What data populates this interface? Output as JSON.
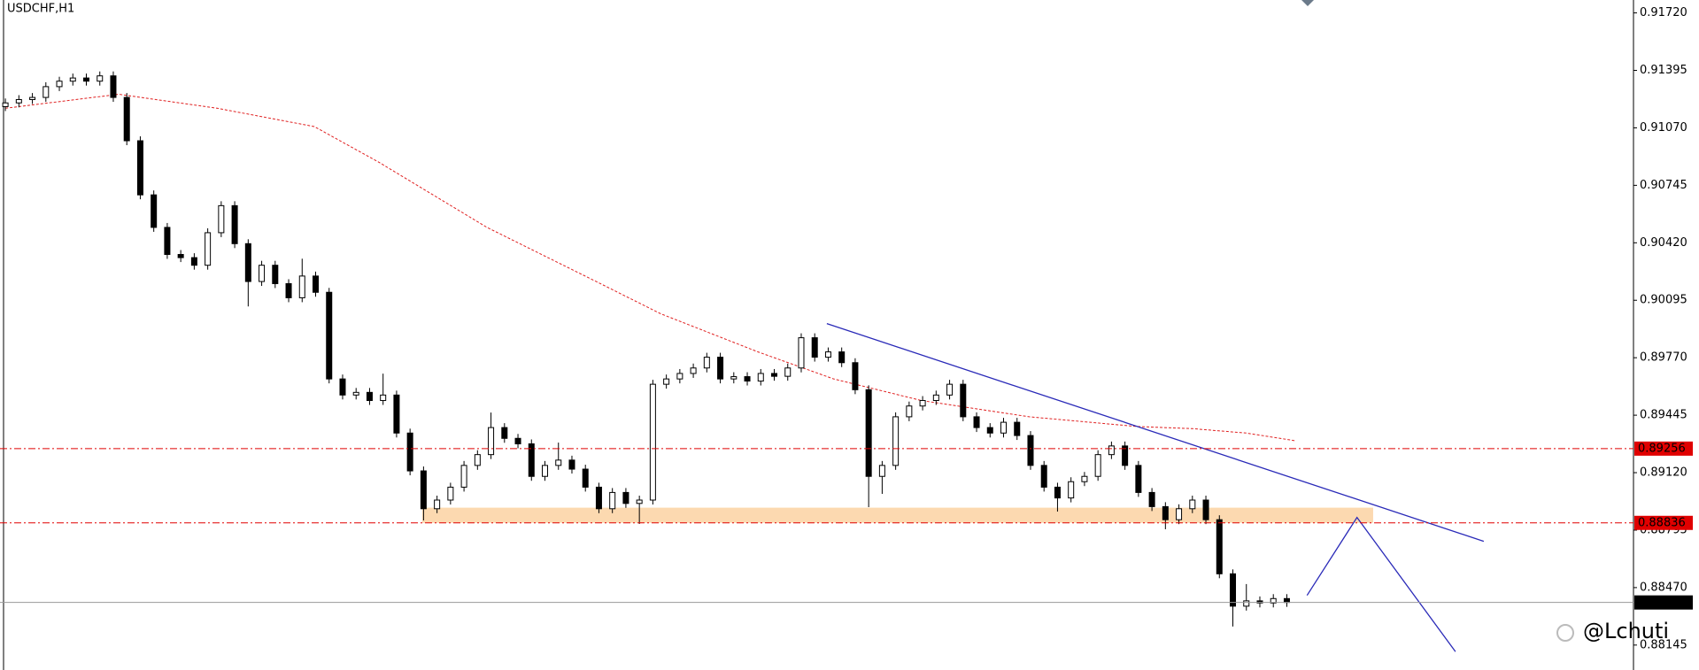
{
  "chart_data": {
    "type": "candlestick",
    "title": "USDCHF,H1",
    "xlim": [
      -0.4,
      120.7
    ],
    "ylim": [
      0.88004,
      0.91793
    ],
    "yticks": [
      {
        "value": 0.9172,
        "label": "0.91720"
      },
      0.91395,
      {
        "value": 0.9107,
        "label": "0.91070"
      },
      0.90745,
      {
        "value": 0.9042,
        "label": "0.90420"
      },
      0.90095,
      {
        "value": 0.8977,
        "label": "0.89770"
      },
      0.89445,
      {
        "value": 0.8912,
        "label": "0.89120"
      },
      0.88795,
      {
        "value": 0.8847,
        "label": "0.88470"
      },
      0.88145
    ],
    "up_color": "#ffffff",
    "down_color": "#000000",
    "open": [
      0.9119,
      0.91211,
      0.9123,
      0.91242,
      0.91303,
      0.91334,
      0.91352,
      0.91334,
      0.91364,
      0.91242,
      0.90997,
      0.90691,
      0.90507,
      0.90354,
      0.90336,
      0.90293,
      0.90477,
      0.9063,
      0.90415,
      0.90201,
      0.90293,
      0.90189,
      0.90109,
      0.90232,
      0.9014,
      0.8965,
      0.89559,
      0.89574,
      0.89528,
      0.89559,
      0.89344,
      0.8913,
      0.88916,
      0.88965,
      0.89038,
      0.89161,
      0.89222,
      0.89375,
      0.89314,
      0.89283,
      0.89099,
      0.89161,
      0.89191,
      0.8914,
      0.89038,
      0.88916,
      0.89008,
      0.88946,
      0.88965,
      0.8962,
      0.8965,
      0.89681,
      0.89712,
      0.89773,
      0.8965,
      0.89663,
      0.89638,
      0.89681,
      0.89665,
      0.89712,
      0.89883,
      0.89773,
      0.89803,
      0.89742,
      0.89589,
      0.89099,
      0.89161,
      0.89436,
      0.89497,
      0.89528,
      0.89559,
      0.8962,
      0.89436,
      0.89375,
      0.89344,
      0.89405,
      0.8933,
      0.89161,
      0.89038,
      0.88977,
      0.89069,
      0.89099,
      0.89222,
      0.89271,
      0.89161,
      0.89008,
      0.88928,
      0.88854,
      0.88916,
      0.88965,
      0.88854,
      0.88548,
      0.88365,
      0.88395,
      0.88383,
      0.88408
    ],
    "high": [
      0.91236,
      0.91255,
      0.91267,
      0.91328,
      0.91359,
      0.91377,
      0.91377,
      0.91389,
      0.91389,
      0.91267,
      0.91022,
      0.90716,
      0.90532,
      0.90379,
      0.90361,
      0.90502,
      0.90655,
      0.90655,
      0.9044,
      0.90318,
      0.90318,
      0.90214,
      0.9033,
      0.90257,
      0.90165,
      0.89675,
      0.89599,
      0.89599,
      0.8968,
      0.89584,
      0.89369,
      0.89155,
      0.8899,
      0.89063,
      0.89186,
      0.89247,
      0.8946,
      0.894,
      0.89339,
      0.89308,
      0.89186,
      0.8929,
      0.89216,
      0.89165,
      0.89063,
      0.89033,
      0.89033,
      0.8899,
      0.89645,
      0.89675,
      0.89706,
      0.89737,
      0.89798,
      0.89798,
      0.89688,
      0.89688,
      0.89706,
      0.89706,
      0.89737,
      0.89908,
      0.89908,
      0.89828,
      0.89828,
      0.89767,
      0.89614,
      0.89186,
      0.89461,
      0.89522,
      0.89553,
      0.89584,
      0.89645,
      0.89645,
      0.89461,
      0.894,
      0.8943,
      0.8943,
      0.89355,
      0.89186,
      0.89063,
      0.89094,
      0.89124,
      0.89247,
      0.89296,
      0.89296,
      0.89186,
      0.89033,
      0.88953,
      0.88941,
      0.8899,
      0.8899,
      0.88879,
      0.88573,
      0.8849,
      0.8842,
      0.88433,
      0.88433
    ],
    "low": [
      0.91165,
      0.91186,
      0.91205,
      0.91217,
      0.91278,
      0.91309,
      0.91309,
      0.91309,
      0.91217,
      0.90972,
      0.90666,
      0.90482,
      0.90329,
      0.90311,
      0.90268,
      0.90268,
      0.90452,
      0.9039,
      0.9006,
      0.90176,
      0.90164,
      0.90084,
      0.90084,
      0.90115,
      0.89625,
      0.89534,
      0.89534,
      0.89503,
      0.89503,
      0.89319,
      0.89105,
      0.8885,
      0.88891,
      0.8894,
      0.89013,
      0.89136,
      0.89197,
      0.89289,
      0.89258,
      0.89074,
      0.89074,
      0.89136,
      0.89115,
      0.89013,
      0.88891,
      0.88891,
      0.88921,
      0.8883,
      0.8894,
      0.89595,
      0.89625,
      0.89656,
      0.89687,
      0.89625,
      0.89625,
      0.89613,
      0.89613,
      0.8964,
      0.8964,
      0.89687,
      0.89748,
      0.89748,
      0.89717,
      0.89564,
      0.88925,
      0.89,
      0.89136,
      0.89411,
      0.89472,
      0.89503,
      0.89534,
      0.89411,
      0.8935,
      0.89319,
      0.89319,
      0.89305,
      0.89136,
      0.89013,
      0.889,
      0.88952,
      0.89044,
      0.89074,
      0.89197,
      0.89136,
      0.88983,
      0.88903,
      0.888,
      0.88829,
      0.88891,
      0.88829,
      0.88523,
      0.8825,
      0.8834,
      0.88358,
      0.88358,
      0.88361
    ],
    "close": [
      0.91211,
      0.9123,
      0.91242,
      0.91303,
      0.91334,
      0.91352,
      0.91334,
      0.91364,
      0.91242,
      0.90997,
      0.90691,
      0.90507,
      0.90354,
      0.90336,
      0.90293,
      0.90477,
      0.9063,
      0.90415,
      0.90201,
      0.90293,
      0.90189,
      0.90109,
      0.90232,
      0.9014,
      0.8965,
      0.89559,
      0.89574,
      0.89528,
      0.89559,
      0.89344,
      0.8913,
      0.88916,
      0.88965,
      0.89038,
      0.89161,
      0.89222,
      0.89375,
      0.89314,
      0.89283,
      0.89099,
      0.89161,
      0.89191,
      0.8914,
      0.89038,
      0.88916,
      0.89008,
      0.88946,
      0.88965,
      0.8962,
      0.8965,
      0.89681,
      0.89712,
      0.89773,
      0.8965,
      0.89663,
      0.89638,
      0.89681,
      0.89665,
      0.89712,
      0.89883,
      0.89773,
      0.89803,
      0.89742,
      0.89589,
      0.89099,
      0.89161,
      0.89436,
      0.89497,
      0.89528,
      0.89559,
      0.8962,
      0.89436,
      0.89375,
      0.89344,
      0.89405,
      0.8933,
      0.89161,
      0.89038,
      0.88977,
      0.89069,
      0.89099,
      0.89222,
      0.89271,
      0.89161,
      0.89008,
      0.88928,
      0.88854,
      0.88916,
      0.88965,
      0.88854,
      0.88548,
      0.88365,
      0.88395,
      0.88383,
      0.88408,
      0.88386
    ],
    "moving_average": {
      "color": "#e02020",
      "x": [
        0,
        8.4,
        15.7,
        22.9,
        27.7,
        35.7,
        43.8,
        48.6,
        55.8,
        61.4,
        67.9,
        75.9,
        83.9,
        88.0,
        92.0,
        95.6
      ],
      "values": [
        0.91181,
        0.9126,
        0.91181,
        0.91077,
        0.90875,
        0.90507,
        0.90201,
        0.90018,
        0.89803,
        0.8965,
        0.89528,
        0.89436,
        0.89381,
        0.89369,
        0.89344,
        0.89301
      ]
    },
    "trendline": {
      "color": "#2a2ab8",
      "x": [
        60.9,
        109.6
      ],
      "values": [
        0.89963,
        0.88732
      ]
    },
    "projection": {
      "color": "#2a2ab8",
      "x": [
        96.5,
        100.2,
        107.5
      ],
      "values": [
        0.88426,
        0.88867,
        0.88108
      ]
    },
    "zone": {
      "color": "#fcd9b0",
      "x": [
        30.9,
        101.4
      ],
      "values": [
        0.88836,
        0.88922
      ]
    },
    "levels": [
      {
        "value": 0.89256,
        "color": "#e00000"
      },
      {
        "value": 0.88836,
        "color": "#e00000"
      }
    ],
    "current_price": {
      "value": 0.88386,
      "color": "#000000"
    },
    "watermark": "@Lchuti"
  }
}
